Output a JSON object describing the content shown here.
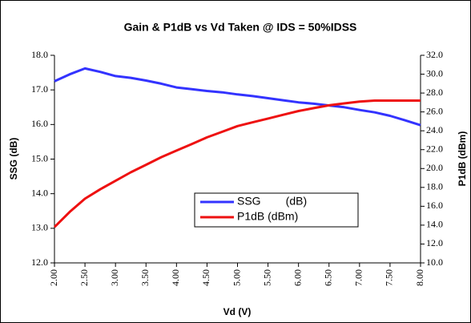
{
  "chart_data": {
    "type": "line",
    "title": "Gain & P1dB vs Vd Taken @ IDS = 50%IDSS",
    "x_label": "Vd (V)",
    "y_label": "SSG (dB)",
    "y2_label": "P1dB (dBm)",
    "x": [
      2.0,
      2.25,
      2.5,
      2.75,
      3.0,
      3.25,
      3.5,
      3.75,
      4.0,
      4.25,
      4.5,
      4.75,
      5.0,
      5.25,
      5.5,
      5.75,
      6.0,
      6.25,
      6.5,
      6.75,
      7.0,
      7.25,
      7.5,
      7.75,
      8.0
    ],
    "series": [
      {
        "name": "SSG        (dB)",
        "color": "#3333ff",
        "axis": "y",
        "values": [
          17.25,
          17.45,
          17.62,
          17.52,
          17.4,
          17.35,
          17.27,
          17.18,
          17.07,
          17.02,
          16.97,
          16.93,
          16.87,
          16.82,
          16.76,
          16.7,
          16.64,
          16.6,
          16.55,
          16.5,
          16.42,
          16.35,
          16.25,
          16.12,
          15.98
        ]
      },
      {
        "name": "P1dB (dBm)",
        "color": "#ee1111",
        "axis": "y2",
        "values": [
          13.8,
          15.4,
          16.8,
          17.8,
          18.7,
          19.6,
          20.4,
          21.2,
          21.9,
          22.6,
          23.3,
          23.9,
          24.5,
          24.9,
          25.3,
          25.7,
          26.1,
          26.4,
          26.7,
          26.9,
          27.1,
          27.2,
          27.2,
          27.2,
          27.2
        ]
      }
    ],
    "xlim": [
      2,
      8
    ],
    "xticks": [
      {
        "value": 2,
        "label": "2.00"
      },
      {
        "value": 2.5,
        "label": "2.50"
      },
      {
        "value": 3,
        "label": "3.00"
      },
      {
        "value": 3.5,
        "label": "3.50"
      },
      {
        "value": 4,
        "label": "4.00"
      },
      {
        "value": 4.5,
        "label": "4.50"
      },
      {
        "value": 5,
        "label": "5.00"
      },
      {
        "value": 5.5,
        "label": "5.50"
      },
      {
        "value": 6,
        "label": "6.00"
      },
      {
        "value": 6.5,
        "label": "6.50"
      },
      {
        "value": 7,
        "label": "7.00"
      },
      {
        "value": 7.5,
        "label": "7.50"
      },
      {
        "value": 8,
        "label": "8.00"
      }
    ],
    "ylim": [
      12,
      18
    ],
    "yticks": [
      {
        "value": 12,
        "label": "12.0"
      },
      {
        "value": 13,
        "label": "13.0"
      },
      {
        "value": 14,
        "label": "14.0"
      },
      {
        "value": 15,
        "label": "15.0"
      },
      {
        "value": 16,
        "label": "16.0"
      },
      {
        "value": 17,
        "label": "17.0"
      },
      {
        "value": 18,
        "label": "18.0"
      }
    ],
    "y2lim": [
      10,
      32
    ],
    "y2ticks": [
      {
        "value": 10,
        "label": "10.0"
      },
      {
        "value": 12,
        "label": "12.0"
      },
      {
        "value": 14,
        "label": "14.0"
      },
      {
        "value": 16,
        "label": "16.0"
      },
      {
        "value": 18,
        "label": "18.0"
      },
      {
        "value": 20,
        "label": "20.0"
      },
      {
        "value": 22,
        "label": "22.0"
      },
      {
        "value": 24,
        "label": "24.0"
      },
      {
        "value": 26,
        "label": "26.0"
      },
      {
        "value": 28,
        "label": "28.0"
      },
      {
        "value": 30,
        "label": "30.0"
      },
      {
        "value": 32,
        "label": "32.0"
      }
    ],
    "grid": false
  }
}
